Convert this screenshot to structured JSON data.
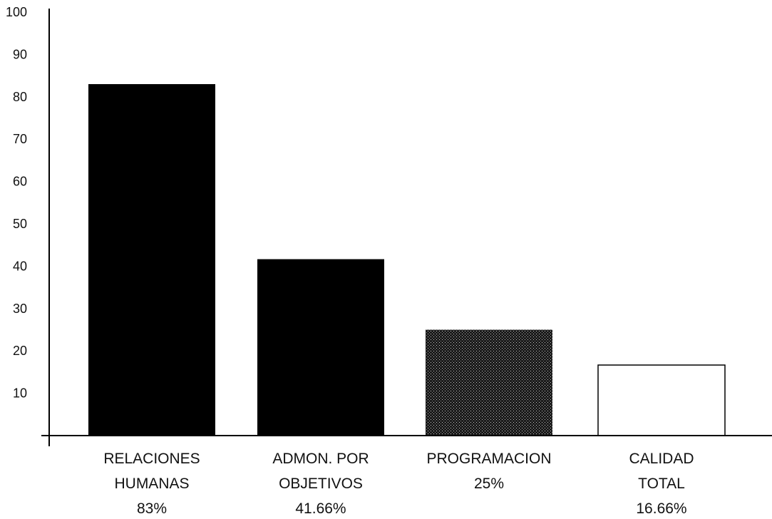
{
  "chart_data": {
    "type": "bar",
    "categories": [
      [
        "RELACIONES",
        "HUMANAS",
        "83%"
      ],
      [
        "ADMON. POR",
        "OBJETIVOS",
        "41.66%"
      ],
      [
        "PROGRAMACION",
        "25%"
      ],
      [
        "CALIDAD",
        "TOTAL",
        "16.66%"
      ]
    ],
    "values": [
      83,
      41.66,
      25,
      16.66
    ],
    "fills": [
      "solid",
      "solid",
      "dotted",
      "none"
    ],
    "colors": {
      "bar": "#000000",
      "axis": "#000000",
      "outline": "#000000",
      "empty": "#ffffff"
    },
    "yticks": [
      10,
      20,
      30,
      40,
      50,
      60,
      70,
      80,
      90,
      100
    ],
    "ylim": [
      0,
      100
    ],
    "grid": false,
    "legend": "none"
  }
}
